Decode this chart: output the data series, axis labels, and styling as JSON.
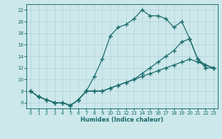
{
  "title": "",
  "xlabel": "Humidex (Indice chaleur)",
  "bg_color": "#cce8eb",
  "grid_color": "#b0d0d8",
  "line_color": "#1a6b6b",
  "xlim": [
    -0.5,
    23.5
  ],
  "ylim": [
    5.0,
    23.0
  ],
  "yticks": [
    6,
    8,
    10,
    12,
    14,
    16,
    18,
    20,
    22
  ],
  "xticks": [
    0,
    1,
    2,
    3,
    4,
    5,
    6,
    7,
    8,
    9,
    10,
    11,
    12,
    13,
    14,
    15,
    16,
    17,
    18,
    19,
    20,
    21,
    22,
    23
  ],
  "line1_x": [
    0,
    1,
    2,
    3,
    4,
    5,
    6,
    7,
    8,
    9,
    10,
    11,
    12,
    13,
    14,
    15,
    16,
    17,
    18,
    19,
    20,
    21,
    22,
    23
  ],
  "line1_y": [
    8,
    7,
    6.5,
    6,
    6,
    5.5,
    6.5,
    8,
    10.5,
    13.5,
    17.5,
    19,
    19.5,
    20.5,
    22,
    21,
    21,
    20.5,
    19,
    20,
    17,
    13.5,
    12,
    12
  ],
  "line2_x": [
    0,
    1,
    2,
    3,
    4,
    5,
    6,
    7,
    8,
    9,
    10,
    11,
    12,
    13,
    14,
    15,
    16,
    17,
    18,
    19,
    20,
    21,
    22,
    23
  ],
  "line2_y": [
    8,
    7,
    6.5,
    6,
    6,
    5.5,
    6.5,
    8,
    8,
    8,
    8.5,
    9,
    9.5,
    10,
    10.5,
    11,
    11.5,
    12,
    12.5,
    13,
    13.5,
    13,
    12.5,
    12
  ],
  "line3_x": [
    0,
    1,
    2,
    3,
    4,
    5,
    6,
    7,
    8,
    9,
    10,
    11,
    12,
    13,
    14,
    15,
    16,
    17,
    18,
    19,
    20,
    21,
    22,
    23
  ],
  "line3_y": [
    8,
    7,
    6.5,
    6,
    6,
    5.5,
    6.5,
    8,
    8,
    8,
    8.5,
    9,
    9.5,
    10,
    11,
    12,
    13,
    14,
    15,
    16.5,
    17,
    13.5,
    12.5,
    12
  ]
}
